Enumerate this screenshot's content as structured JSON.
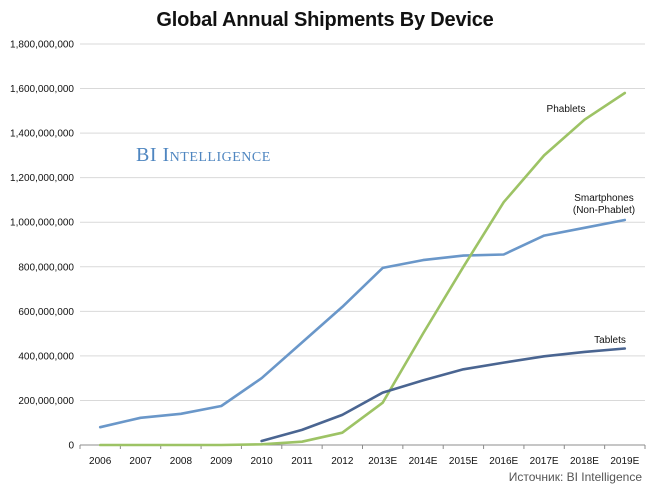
{
  "chart_data": {
    "type": "line",
    "title": "Global Annual Shipments By Device",
    "categories": [
      "2006",
      "2007",
      "2008",
      "2009",
      "2010",
      "2011",
      "2012",
      "2013E",
      "2014E",
      "2015E",
      "2016E",
      "2017E",
      "2018E",
      "2019E"
    ],
    "y_ticks": [
      "0",
      "200,000,000",
      "400,000,000",
      "600,000,000",
      "800,000,000",
      "1,000,000,000",
      "1,200,000,000",
      "1,400,000,000",
      "1,600,000,000",
      "1,800,000,000"
    ],
    "ylim": [
      0,
      1800000000
    ],
    "grid": true,
    "series": [
      {
        "name": "Smartphones (Non-Phablet)",
        "label_lines": [
          "Smartphones",
          "(Non-Phablet)"
        ],
        "color": "#6a97c9",
        "values": [
          80000000,
          122000000,
          140000000,
          175000000,
          300000000,
          460000000,
          620000000,
          795000000,
          830000000,
          850000000,
          855000000,
          940000000,
          975000000,
          1010000000
        ]
      },
      {
        "name": "Phablets",
        "label_lines": [
          "Phablets"
        ],
        "color": "#9dc365",
        "values": [
          0,
          0,
          0,
          0,
          3000000,
          15000000,
          55000000,
          190000000,
          500000000,
          800000000,
          1090000000,
          1300000000,
          1460000000,
          1580000000
        ]
      },
      {
        "name": "Tablets",
        "label_lines": [
          "Tablets"
        ],
        "color": "#4a6591",
        "values": [
          null,
          null,
          null,
          null,
          18000000,
          68000000,
          135000000,
          235000000,
          290000000,
          340000000,
          370000000,
          398000000,
          418000000,
          433000000
        ]
      }
    ]
  },
  "watermark": "BI Intelligence",
  "source": "Источник: BI Intelligence"
}
